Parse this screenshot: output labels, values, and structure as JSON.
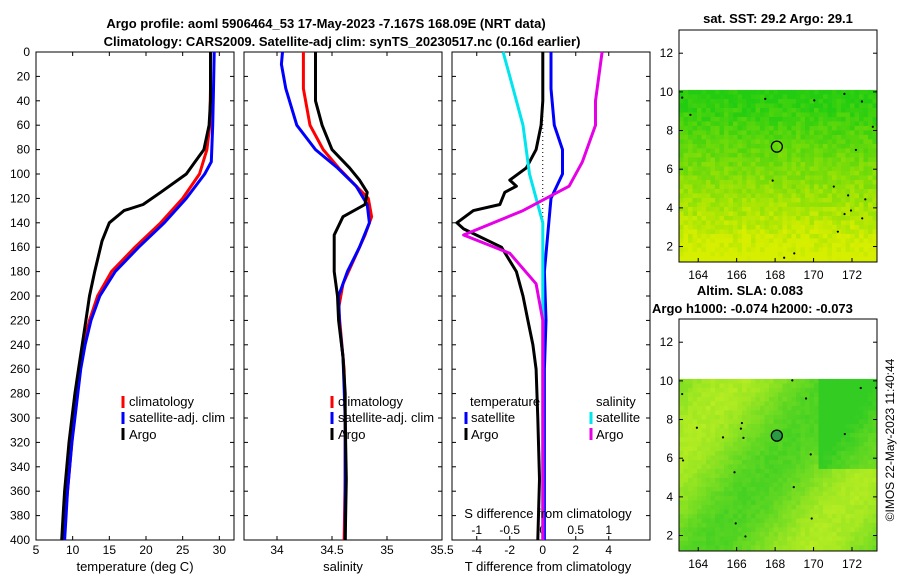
{
  "titles": {
    "line1": "Argo profile: aoml 5906464_53 17-May-2023 -7.167S 168.09E (NRT data)",
    "line2": "Climatology: CARS2009. Satellite-adj clim: synTS_20230517.nc (0.16d earlier)",
    "sst": "sat. SST: 29.2 Argo: 29.1",
    "sla1": "Altim. SLA: 0.083",
    "sla2": "Argo h1000: -0.074 h2000: -0.073",
    "credit": "©IMOS 22-May-2023 11:40:44"
  },
  "colors": {
    "climatology": "#ff0000",
    "satellite": "#0000ff",
    "argo": "#000000",
    "sat_s": "#00e5ee",
    "argo_s": "#e600e6"
  },
  "chart_data": [
    {
      "type": "line",
      "name": "temperature",
      "xlabel": "temperature (deg C)",
      "xlim": [
        5,
        32
      ],
      "ylim": [
        400,
        0
      ],
      "xticks": [
        "5",
        "10",
        "15",
        "20",
        "25",
        "30"
      ],
      "yticks": [
        "0",
        "20",
        "40",
        "60",
        "80",
        "100",
        "120",
        "140",
        "160",
        "180",
        "200",
        "220",
        "240",
        "260",
        "280",
        "300",
        "320",
        "340",
        "360",
        "380",
        "400"
      ],
      "legend": [
        "climatology",
        "satellite-adj. clim",
        "Argo"
      ],
      "series": [
        {
          "name": "climatology",
          "color": "#ff0000",
          "points": [
            [
              28.8,
              0
            ],
            [
              28.8,
              30
            ],
            [
              28.7,
              60
            ],
            [
              28.3,
              80
            ],
            [
              27.3,
              100
            ],
            [
              25,
              120
            ],
            [
              22,
              140
            ],
            [
              18.5,
              160
            ],
            [
              15.3,
              180
            ],
            [
              13.4,
              200
            ],
            [
              12.3,
              220
            ],
            [
              11.5,
              240
            ],
            [
              11,
              260
            ],
            [
              10.6,
              280
            ],
            [
              10.2,
              300
            ],
            [
              9.9,
              320
            ],
            [
              9.6,
              340
            ],
            [
              9.3,
              360
            ],
            [
              9,
              380
            ],
            [
              8.8,
              400
            ]
          ]
        },
        {
          "name": "satellite-adj. clim",
          "color": "#0000ff",
          "points": [
            [
              29.3,
              0
            ],
            [
              29.2,
              30
            ],
            [
              29.1,
              60
            ],
            [
              28.9,
              90
            ],
            [
              28,
              100
            ],
            [
              25.5,
              120
            ],
            [
              22.5,
              140
            ],
            [
              19,
              160
            ],
            [
              15.8,
              180
            ],
            [
              13.7,
              200
            ],
            [
              12.5,
              220
            ],
            [
              11.7,
              240
            ],
            [
              11.1,
              260
            ],
            [
              10.7,
              280
            ],
            [
              10.3,
              300
            ],
            [
              9.9,
              320
            ],
            [
              9.6,
              340
            ],
            [
              9.3,
              360
            ],
            [
              9.1,
              380
            ],
            [
              8.9,
              400
            ]
          ]
        },
        {
          "name": "Argo",
          "color": "#000000",
          "points": [
            [
              28.8,
              0
            ],
            [
              28.8,
              40
            ],
            [
              28.6,
              60
            ],
            [
              27.9,
              80
            ],
            [
              26.7,
              90
            ],
            [
              25.5,
              100
            ],
            [
              22,
              115
            ],
            [
              19.6,
              125
            ],
            [
              17,
              130
            ],
            [
              15,
              140
            ],
            [
              14,
              155
            ],
            [
              13,
              180
            ],
            [
              12.3,
              200
            ],
            [
              11.8,
              220
            ],
            [
              11.3,
              240
            ],
            [
              10.8,
              260
            ],
            [
              10.3,
              280
            ],
            [
              9.9,
              300
            ],
            [
              9.5,
              320
            ],
            [
              9.2,
              340
            ],
            [
              8.9,
              360
            ],
            [
              8.7,
              380
            ],
            [
              8.5,
              400
            ]
          ]
        }
      ]
    },
    {
      "type": "line",
      "name": "salinity",
      "xlabel": "salinity",
      "xlim": [
        33.7,
        35.5
      ],
      "ylim": [
        400,
        0
      ],
      "xticks": [
        "34",
        "34.5",
        "35",
        "35.5"
      ],
      "legend": [
        "climatology",
        "satellite-adj. clim",
        "Argo"
      ],
      "series": [
        {
          "name": "climatology",
          "color": "#ff0000",
          "points": [
            [
              34.24,
              0
            ],
            [
              34.24,
              30
            ],
            [
              34.3,
              60
            ],
            [
              34.42,
              80
            ],
            [
              34.56,
              95
            ],
            [
              34.72,
              110
            ],
            [
              34.83,
              120
            ],
            [
              34.86,
              135
            ],
            [
              34.8,
              150
            ],
            [
              34.7,
              170
            ],
            [
              34.6,
              190
            ],
            [
              34.56,
              210
            ],
            [
              34.58,
              230
            ],
            [
              34.61,
              260
            ],
            [
              34.62,
              300
            ],
            [
              34.62,
              350
            ],
            [
              34.61,
              400
            ]
          ]
        },
        {
          "name": "satellite-adj. clim",
          "color": "#0000ff",
          "points": [
            [
              34.05,
              0
            ],
            [
              34.04,
              10
            ],
            [
              34.08,
              30
            ],
            [
              34.18,
              60
            ],
            [
              34.35,
              80
            ],
            [
              34.55,
              95
            ],
            [
              34.72,
              110
            ],
            [
              34.82,
              125
            ],
            [
              34.84,
              140
            ],
            [
              34.75,
              160
            ],
            [
              34.64,
              180
            ],
            [
              34.56,
              200
            ],
            [
              34.57,
              225
            ],
            [
              34.6,
              250
            ],
            [
              34.62,
              300
            ],
            [
              34.62,
              350
            ],
            [
              34.62,
              400
            ]
          ]
        },
        {
          "name": "Argo",
          "color": "#000000",
          "points": [
            [
              34.35,
              0
            ],
            [
              34.35,
              40
            ],
            [
              34.41,
              60
            ],
            [
              34.5,
              80
            ],
            [
              34.66,
              95
            ],
            [
              34.75,
              105
            ],
            [
              34.82,
              115
            ],
            [
              34.8,
              125
            ],
            [
              34.6,
              135
            ],
            [
              34.52,
              150
            ],
            [
              34.52,
              180
            ],
            [
              34.55,
              200
            ],
            [
              34.56,
              220
            ],
            [
              34.6,
              250
            ],
            [
              34.62,
              280
            ],
            [
              34.62,
              300
            ],
            [
              34.63,
              350
            ],
            [
              34.62,
              400
            ]
          ]
        }
      ]
    },
    {
      "type": "line",
      "name": "difference from climatology",
      "xlabel": "T difference from climatology",
      "xlabel_top": "S difference from climatology",
      "xlim": [
        -5.5,
        6.5
      ],
      "ylim": [
        400,
        0
      ],
      "xticks": [
        "-4",
        "-2",
        "0",
        "2",
        "4"
      ],
      "sticks": [
        "-1",
        "-0.5",
        "0",
        "0.5",
        "1"
      ],
      "legend": {
        "temperature_label": "temperature",
        "salinity_label": "salinity",
        "items": [
          "satellite",
          "Argo",
          "satellite",
          "Argo"
        ]
      },
      "series": [
        {
          "name": "T satellite",
          "color": "#0000ff",
          "points": [
            [
              0.5,
              0
            ],
            [
              0.5,
              30
            ],
            [
              0.7,
              60
            ],
            [
              1.2,
              80
            ],
            [
              1.2,
              100
            ],
            [
              0.5,
              120
            ],
            [
              0.3,
              150
            ],
            [
              0.1,
              180
            ],
            [
              0.2,
              220
            ],
            [
              0.1,
              260
            ],
            [
              0.1,
              300
            ],
            [
              0.1,
              350
            ],
            [
              0.1,
              400
            ]
          ]
        },
        {
          "name": "T Argo",
          "color": "#000000",
          "points": [
            [
              0,
              0
            ],
            [
              0,
              40
            ],
            [
              -0.1,
              60
            ],
            [
              -0.4,
              80
            ],
            [
              -1,
              95
            ],
            [
              -2,
              105
            ],
            [
              -1.6,
              110
            ],
            [
              -2.3,
              115
            ],
            [
              -2.6,
              125
            ],
            [
              -4.2,
              130
            ],
            [
              -5.2,
              140
            ],
            [
              -4.8,
              145
            ],
            [
              -2.5,
              160
            ],
            [
              -1.6,
              180
            ],
            [
              -1.2,
              200
            ],
            [
              -0.9,
              220
            ],
            [
              -0.6,
              240
            ],
            [
              -0.4,
              260
            ],
            [
              -0.3,
              300
            ],
            [
              -0.2,
              350
            ],
            [
              -0.3,
              400
            ]
          ]
        },
        {
          "name": "S satellite",
          "color": "#00e5ee",
          "points": [
            [
              -0.6,
              0
            ],
            [
              -0.5,
              20
            ],
            [
              -0.3,
              60
            ],
            [
              -0.2,
              100
            ],
            [
              0,
              140
            ],
            [
              0,
              180
            ],
            [
              0,
              220
            ],
            [
              0,
              300
            ],
            [
              0,
              400
            ]
          ]
        },
        {
          "name": "S Argo",
          "color": "#e600e6",
          "points": [
            [
              0.9,
              0
            ],
            [
              0.8,
              40
            ],
            [
              0.8,
              60
            ],
            [
              0.6,
              90
            ],
            [
              0.4,
              110
            ],
            [
              -0.3,
              130
            ],
            [
              -1.2,
              150
            ],
            [
              -0.5,
              165
            ],
            [
              -0.1,
              190
            ],
            [
              0,
              220
            ],
            [
              0,
              300
            ],
            [
              0,
              400
            ]
          ]
        }
      ]
    },
    {
      "type": "heatmap",
      "name": "satellite SST map",
      "xticks": [
        "164",
        "166",
        "168",
        "170",
        "172"
      ],
      "yticks": [
        "2",
        "4",
        "6",
        "8",
        "10",
        "12"
      ],
      "xlim": [
        163,
        173.3
      ],
      "ylim": [
        1.2,
        13.2
      ],
      "data_top": 10.1,
      "argo_position": [
        168.09,
        7.167
      ]
    },
    {
      "type": "heatmap",
      "name": "altimetry SLA map",
      "xticks": [
        "164",
        "166",
        "168",
        "170",
        "172"
      ],
      "yticks": [
        "2",
        "4",
        "6",
        "8",
        "10",
        "12"
      ],
      "xlim": [
        163,
        173.3
      ],
      "ylim": [
        1.2,
        13.2
      ],
      "data_top": 10.1,
      "argo_position": [
        168.09,
        7.167
      ]
    }
  ]
}
